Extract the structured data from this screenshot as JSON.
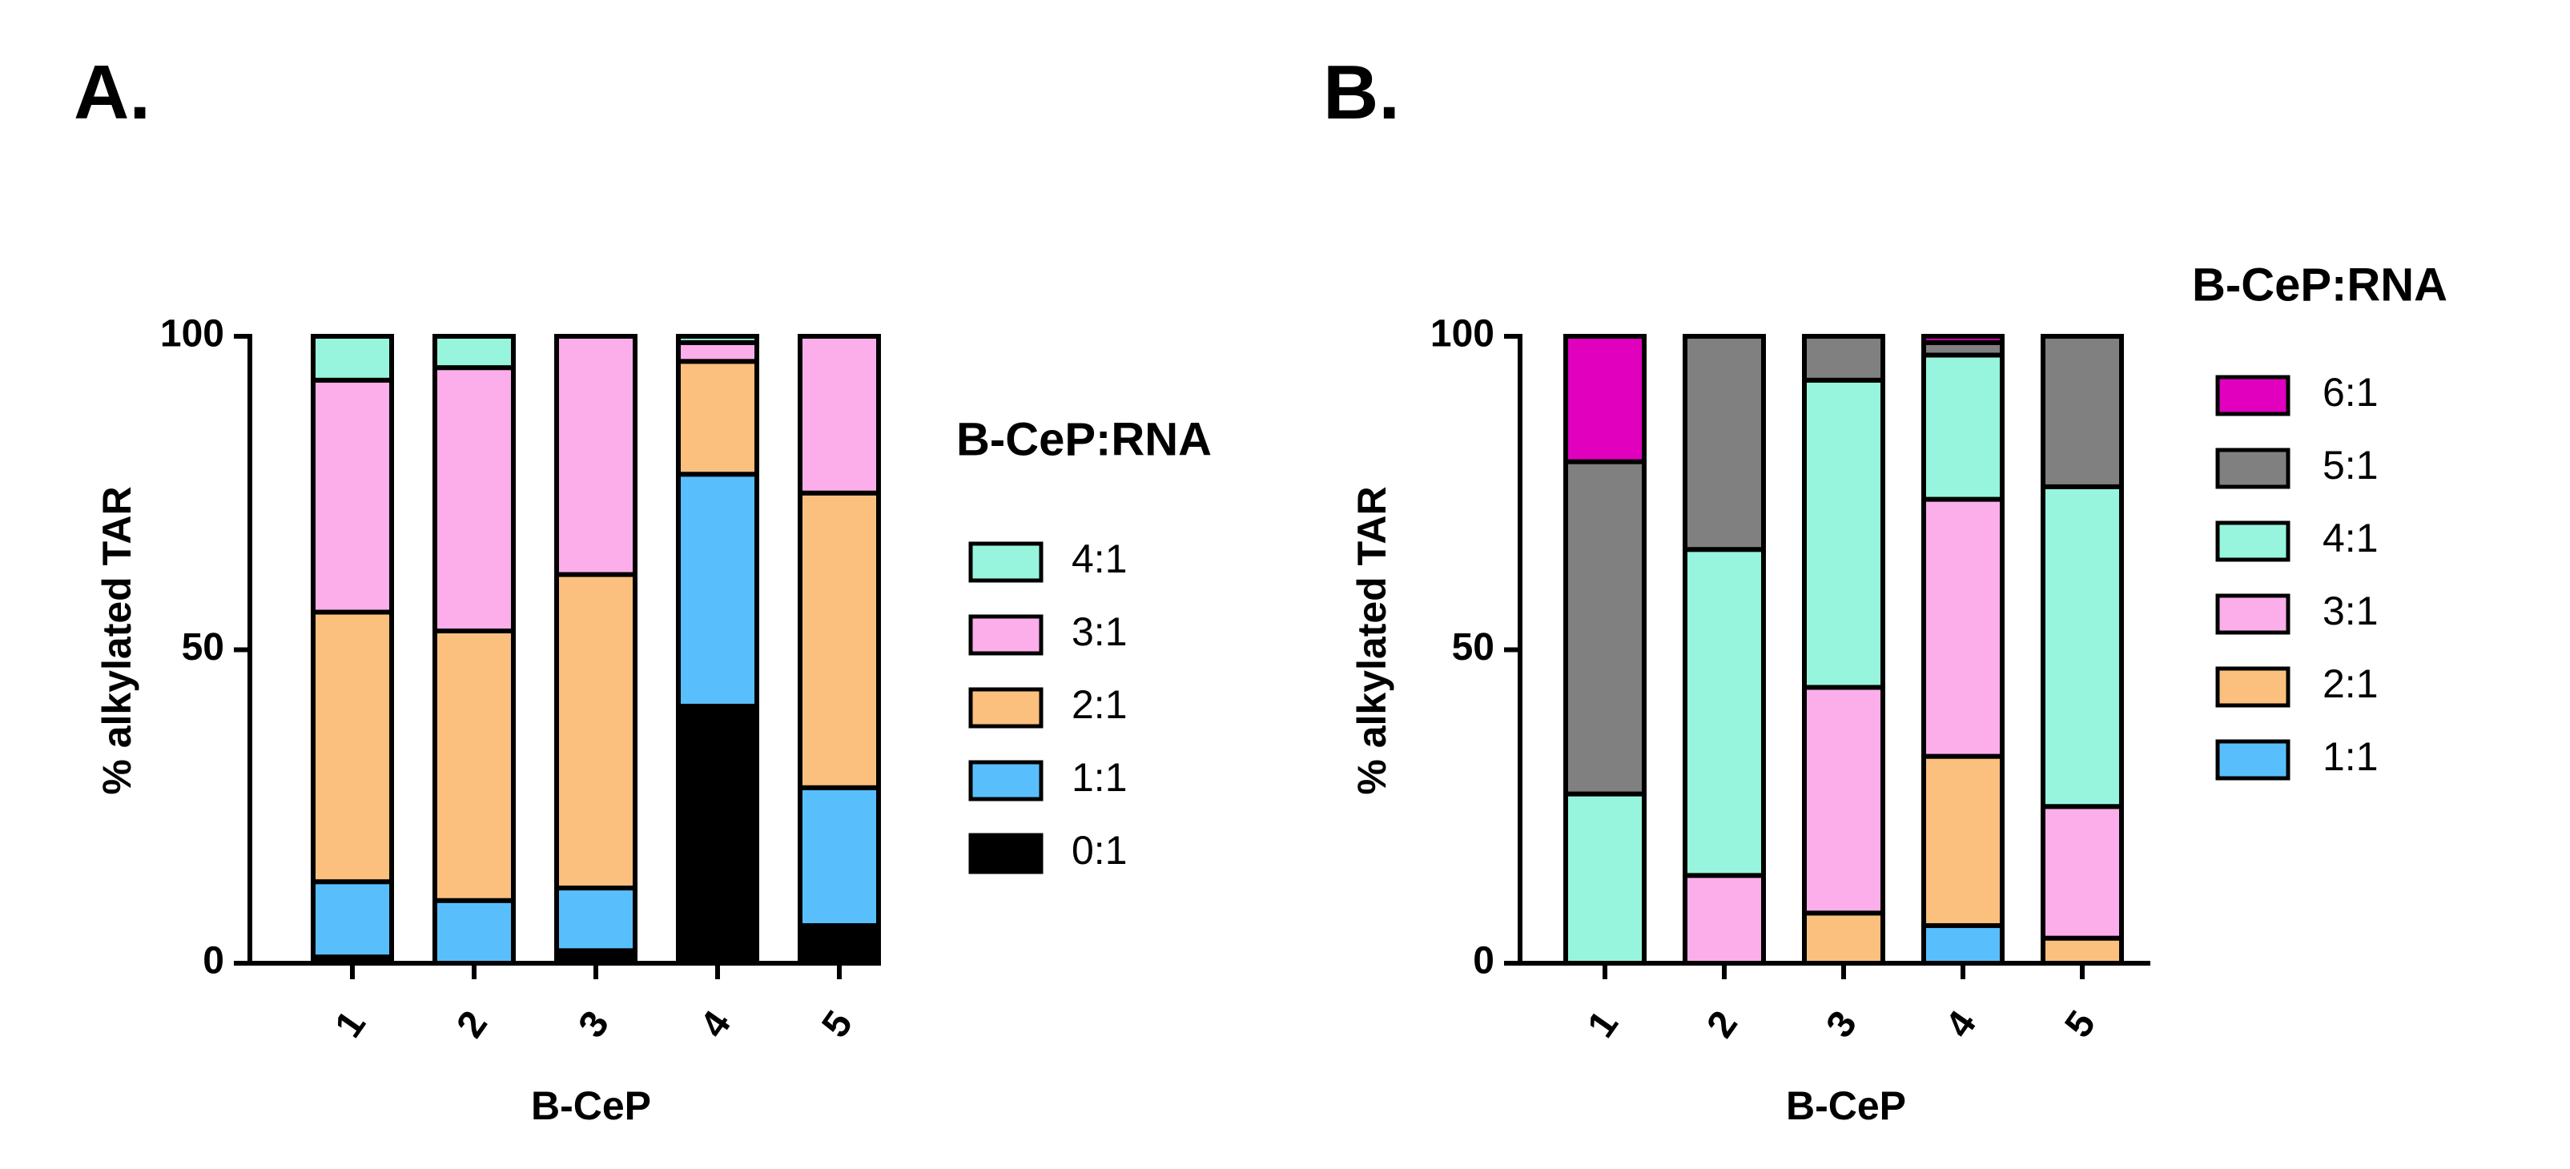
{
  "panels": [
    {
      "label": "A."
    },
    {
      "label": "B."
    }
  ],
  "chart_data": [
    {
      "type": "bar",
      "stacked": true,
      "title": "",
      "xlabel": "B-CeP",
      "ylabel": "% alkylated TAR",
      "ylim": [
        0,
        100
      ],
      "yticks": [
        0,
        50,
        100
      ],
      "categories": [
        "1",
        "2",
        "3",
        "4",
        "5"
      ],
      "legend_title": "B-CeP:RNA",
      "series": [
        {
          "name": "0:1",
          "color": "#000000",
          "values": [
            1,
            0,
            2,
            41,
            6
          ]
        },
        {
          "name": "1:1",
          "color": "#59BFFC",
          "values": [
            12,
            10,
            10,
            37,
            22
          ]
        },
        {
          "name": "2:1",
          "color": "#FBC07E",
          "values": [
            43,
            43,
            50,
            18,
            47
          ]
        },
        {
          "name": "3:1",
          "color": "#FBAEEA",
          "values": [
            37,
            42,
            38,
            3,
            25
          ]
        },
        {
          "name": "4:1",
          "color": "#97F5DD",
          "values": [
            7,
            5,
            0,
            1,
            0
          ]
        }
      ]
    },
    {
      "type": "bar",
      "stacked": true,
      "title": "",
      "xlabel": "B-CeP",
      "ylabel": "% alkylated TAR",
      "ylim": [
        0,
        100
      ],
      "yticks": [
        0,
        50,
        100
      ],
      "categories": [
        "1",
        "2",
        "3",
        "4",
        "5"
      ],
      "legend_title": "B-CeP:RNA",
      "series": [
        {
          "name": "1:1",
          "color": "#59BFFC",
          "values": [
            0,
            0,
            0,
            6,
            0
          ]
        },
        {
          "name": "2:1",
          "color": "#FBC07E",
          "values": [
            0,
            0,
            8,
            27,
            4
          ]
        },
        {
          "name": "3:1",
          "color": "#FBAEEA",
          "values": [
            0,
            14,
            36,
            41,
            21
          ]
        },
        {
          "name": "4:1",
          "color": "#97F5DD",
          "values": [
            27,
            52,
            49,
            23,
            51
          ]
        },
        {
          "name": "5:1",
          "color": "#808080",
          "values": [
            53,
            34,
            7,
            2,
            24
          ]
        },
        {
          "name": "6:1",
          "color": "#E000BE",
          "values": [
            20,
            0,
            0,
            1,
            0
          ]
        }
      ]
    }
  ]
}
